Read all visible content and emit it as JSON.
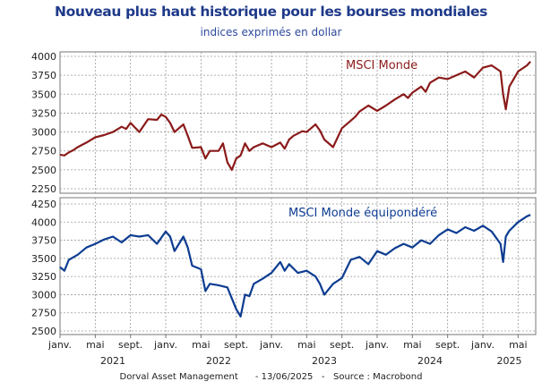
{
  "header": {
    "title": "Nouveau plus haut historique pour les bourses mondiales",
    "subtitle": "indices exprimés en dollar"
  },
  "footer": {
    "text": "Dorval Asset Management      - 13/06/2025   -   Source : Macrobond"
  },
  "colors": {
    "top": "#8b1a1a",
    "bottom": "#0d3c91",
    "grid": "#9a9a9a",
    "frame": "#777777"
  },
  "chart_data": [
    {
      "type": "line",
      "name": "MSCI Monde",
      "label": "MSCI Monde",
      "ylim": [
        2250,
        4000
      ],
      "yticks": [
        2250,
        2500,
        2750,
        3000,
        3250,
        3500,
        3750,
        4000
      ],
      "x_unit": "months since 2021-01-01",
      "xlim": [
        0,
        54
      ],
      "series": [
        {
          "name": "MSCI Monde",
          "x": [
            0,
            0.5,
            1,
            1.5,
            2,
            3,
            4,
            5,
            6,
            7,
            7.5,
            8,
            9,
            10,
            11,
            11.5,
            12,
            12.5,
            13,
            14,
            14.5,
            15,
            16,
            16.5,
            17,
            18,
            18.5,
            19,
            19.5,
            20,
            20.5,
            21,
            21.5,
            22,
            23,
            24,
            25,
            25.5,
            26,
            26.5,
            27,
            27.5,
            28,
            29,
            29.5,
            30,
            31,
            32,
            33,
            33.5,
            34,
            35,
            36,
            37,
            38,
            39,
            39.5,
            40,
            41,
            41.5,
            42,
            43,
            44,
            45,
            46,
            46.5,
            47,
            48,
            49,
            50,
            50.3,
            50.6,
            51,
            51.5,
            52,
            53,
            53.4
          ],
          "values": [
            2700,
            2690,
            2730,
            2760,
            2800,
            2860,
            2930,
            2960,
            3000,
            3070,
            3040,
            3120,
            3000,
            3170,
            3160,
            3230,
            3200,
            3120,
            3000,
            3100,
            2950,
            2790,
            2800,
            2650,
            2750,
            2750,
            2850,
            2600,
            2500,
            2650,
            2690,
            2850,
            2750,
            2800,
            2850,
            2800,
            2860,
            2780,
            2900,
            2950,
            2980,
            3010,
            3000,
            3100,
            3020,
            2900,
            2800,
            3050,
            3150,
            3200,
            3270,
            3350,
            3280,
            3350,
            3430,
            3500,
            3450,
            3520,
            3600,
            3530,
            3650,
            3720,
            3700,
            3750,
            3800,
            3760,
            3720,
            3850,
            3880,
            3800,
            3500,
            3300,
            3600,
            3700,
            3800,
            3880,
            3930
          ]
        }
      ]
    },
    {
      "type": "line",
      "name": "MSCI Monde équipondéré",
      "label": "MSCI Monde équipondéré",
      "ylim": [
        2500,
        4250
      ],
      "yticks": [
        2500,
        2750,
        3000,
        3250,
        3500,
        3750,
        4000,
        4250
      ],
      "x_unit": "months since 2021-01-01",
      "xlim": [
        0,
        54
      ],
      "series": [
        {
          "name": "MSCI Monde équipondéré",
          "x": [
            0,
            0.5,
            1,
            2,
            3,
            4,
            5,
            6,
            7,
            8,
            9,
            10,
            11,
            12,
            12.5,
            13,
            14,
            14.5,
            15,
            16,
            16.5,
            17,
            18,
            19,
            20,
            20.5,
            21,
            21.5,
            22,
            23,
            24,
            25,
            25.5,
            26,
            27,
            28,
            29,
            29.5,
            30,
            31,
            32,
            33,
            34,
            35,
            36,
            37,
            38,
            39,
            40,
            41,
            42,
            43,
            44,
            45,
            46,
            47,
            48,
            49,
            50,
            50.3,
            50.6,
            51,
            52,
            53,
            53.4
          ],
          "values": [
            3380,
            3330,
            3480,
            3550,
            3650,
            3700,
            3760,
            3800,
            3720,
            3820,
            3800,
            3820,
            3700,
            3870,
            3800,
            3600,
            3800,
            3650,
            3400,
            3350,
            3050,
            3150,
            3130,
            3100,
            2800,
            2700,
            3000,
            2980,
            3150,
            3220,
            3300,
            3450,
            3330,
            3420,
            3300,
            3330,
            3250,
            3150,
            3000,
            3150,
            3230,
            3480,
            3520,
            3420,
            3600,
            3550,
            3640,
            3700,
            3650,
            3750,
            3700,
            3820,
            3900,
            3850,
            3930,
            3880,
            3950,
            3870,
            3700,
            3450,
            3800,
            3880,
            4000,
            4080,
            4100
          ]
        }
      ]
    }
  ],
  "x_axis": {
    "month_labels": [
      {
        "m": 0,
        "label": "janv."
      },
      {
        "m": 4,
        "label": "mai"
      },
      {
        "m": 8,
        "label": "sept."
      },
      {
        "m": 12,
        "label": "janv."
      },
      {
        "m": 16,
        "label": "mai"
      },
      {
        "m": 20,
        "label": "sept."
      },
      {
        "m": 24,
        "label": "janv."
      },
      {
        "m": 28,
        "label": "mai"
      },
      {
        "m": 32,
        "label": "sept."
      },
      {
        "m": 36,
        "label": "janv."
      },
      {
        "m": 40,
        "label": "mai"
      },
      {
        "m": 44,
        "label": "sept."
      },
      {
        "m": 48,
        "label": "janv."
      },
      {
        "m": 52,
        "label": "mai"
      }
    ],
    "years": [
      {
        "m": 6,
        "label": "2021"
      },
      {
        "m": 18,
        "label": "2022"
      },
      {
        "m": 30,
        "label": "2023"
      },
      {
        "m": 42,
        "label": "2024"
      },
      {
        "m": 51,
        "label": "2025"
      }
    ]
  }
}
